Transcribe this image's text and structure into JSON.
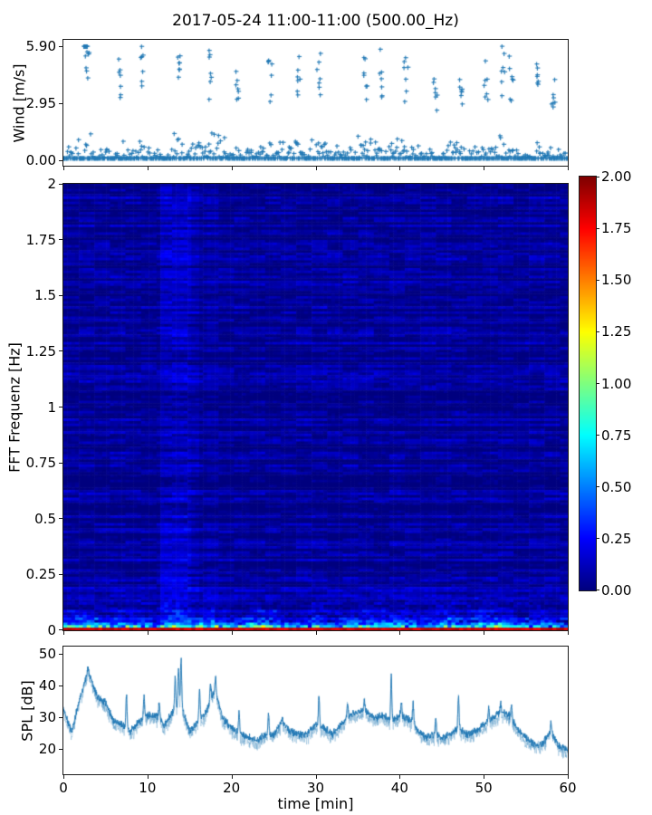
{
  "figure": {
    "title": "2017-05-24 11:00-11:00 (500.00_Hz)",
    "background_color": "#ffffff",
    "series_color": "#1f77b4"
  },
  "chart_data": [
    {
      "id": "wind_speed",
      "type": "scatter",
      "ylabel": "Wind [m/s]",
      "xlim": [
        0,
        60
      ],
      "ylim": [
        -0.3,
        6.2
      ],
      "grid": false,
      "marker": "plus",
      "color": "#1f77b4",
      "yticks": {
        "labels": [
          "0.00",
          "2.95",
          "5.90"
        ],
        "values": [
          0,
          2.95,
          5.9
        ]
      },
      "xticks": {
        "labels": [],
        "values": [
          0,
          10,
          20,
          30,
          40,
          50,
          60
        ]
      },
      "sampling": {
        "points_per_minute": 14,
        "relative_spread": 0.75
      },
      "mean_by_minute": [
        1.5,
        1.2,
        2.2,
        3.0,
        2.0,
        1.5,
        1.1,
        1.8,
        1.2,
        1.9,
        1.8,
        1.3,
        1.0,
        1.6,
        1.9,
        1.2,
        1.8,
        2.2,
        2.1,
        1.4,
        1.1,
        1.5,
        1.0,
        0.9,
        1.6,
        1.4,
        1.6,
        1.2,
        1.5,
        1.1,
        1.9,
        1.6,
        0.9,
        0.8,
        1.4,
        2.0,
        2.2,
        1.6,
        1.9,
        1.4,
        1.6,
        1.7,
        1.3,
        0.8,
        1.2,
        1.1,
        1.4,
        1.6,
        1.0,
        1.3,
        1.9,
        1.8,
        2.2,
        1.9,
        1.4,
        0.9,
        1.3,
        1.2,
        1.5,
        1.3,
        1.1
      ],
      "gusts": [
        [
          2.9,
          5.9
        ],
        [
          3.1,
          5.4
        ],
        [
          7.0,
          4.4
        ],
        [
          9.5,
          4.6
        ],
        [
          13.9,
          4.3
        ],
        [
          17.6,
          4.5
        ],
        [
          21.0,
          3.7
        ],
        [
          24.8,
          4.4
        ],
        [
          28.2,
          4.2
        ],
        [
          30.6,
          4.7
        ],
        [
          36.2,
          4.4
        ],
        [
          38.0,
          4.5
        ],
        [
          41.0,
          4.2
        ],
        [
          44.5,
          3.5
        ],
        [
          47.6,
          3.6
        ],
        [
          50.5,
          4.2
        ],
        [
          52.5,
          4.8
        ],
        [
          53.5,
          4.2
        ],
        [
          56.5,
          4.0
        ],
        [
          58.5,
          3.4
        ]
      ]
    },
    {
      "id": "fft_spectrogram",
      "type": "heatmap",
      "ylabel": "FFT Frequenz [Hz]",
      "xlim": [
        0,
        60
      ],
      "ylim": [
        0,
        2
      ],
      "value_range": [
        0,
        2
      ],
      "colormap": "jet",
      "yticks": {
        "labels": [
          "2",
          "1.75",
          "1.5",
          "1.25",
          "1",
          "0.75",
          "0.5",
          "0.25",
          "0"
        ],
        "values": [
          2,
          1.75,
          1.5,
          1.25,
          1,
          0.75,
          0.5,
          0.25,
          0
        ]
      },
      "xticks": {
        "labels": [],
        "values": [
          0,
          10,
          20,
          30,
          40,
          50,
          60
        ]
      },
      "colorbar": {
        "ticks": {
          "labels": [
            "2.00",
            "1.75",
            "1.50",
            "1.25",
            "1.00",
            "0.75",
            "0.50",
            "0.25",
            "0.00"
          ],
          "values": [
            2,
            1.75,
            1.5,
            1.25,
            1,
            0.75,
            0.5,
            0.25,
            0
          ]
        },
        "range": [
          0,
          2
        ]
      },
      "model": {
        "background": {
          "base": 0.04,
          "row_weight": 0.18,
          "block_weight": 0.16,
          "cell_weight": 0.07
        },
        "bright_row_threshold": 0.96,
        "bright_row_boost": 0.1,
        "low_freq_boost": [
          {
            "amplitude": 0.5,
            "decay_hz": 0.1
          },
          {
            "amplitude": 1.1,
            "decay_hz": 0.035
          },
          {
            "amplitude": 1.2,
            "decay_hz": 0.02
          }
        ],
        "bottom_row_value": [
          1.85,
          2.0
        ],
        "bright_band": {
          "t_start": 11.7,
          "t_end": 15.2,
          "stripe_threshold": 0.58,
          "min_boost": 0.1,
          "max_boost": 0.7,
          "dip_center_hz": 0.95,
          "dip_width_hz": 0.3,
          "dip_depth": 0.45
        },
        "echo_columns": [
          {
            "t_start": 15.2,
            "t_end": 16.1,
            "boost": 0.13
          },
          {
            "t_start": 16.9,
            "t_end": 18.4,
            "boost": 0.08
          }
        ],
        "activity_by_minute": [
          1.0,
          1.1,
          1.2,
          1.2,
          1.1,
          1.0,
          0.9,
          1.1,
          0.9,
          1.0,
          0.9,
          0.8,
          1.0,
          1.3,
          1.3,
          0.9,
          1.0,
          1.2,
          1.2,
          1.0,
          0.9,
          1.0,
          1.2,
          1.3,
          1.2,
          1.1,
          0.9,
          0.8,
          0.9,
          0.9,
          1.1,
          0.9,
          0.8,
          0.9,
          1.1,
          1.2,
          1.1,
          0.9,
          1.1,
          1.1,
          1.2,
          1.1,
          0.9,
          0.7,
          0.9,
          1.2,
          1.2,
          1.0,
          0.9,
          1.1,
          1.2,
          1.2,
          1.1,
          1.0,
          0.8,
          0.7,
          0.8,
          0.9,
          0.8,
          0.7,
          0.7
        ]
      }
    },
    {
      "id": "spl",
      "type": "line",
      "ylabel": "SPL [dB]",
      "xlabel": "time [min]",
      "xlim": [
        0,
        60
      ],
      "ylim": [
        12,
        52.3
      ],
      "color": "#1f77b4",
      "noise_db": 1.4,
      "yticks": {
        "labels": [
          "20",
          "30",
          "40",
          "50"
        ],
        "values": [
          20,
          30,
          40,
          50
        ]
      },
      "xticks": {
        "labels": [
          "0",
          "10",
          "20",
          "30",
          "40",
          "50",
          "60"
        ],
        "values": [
          0,
          10,
          20,
          30,
          40,
          50,
          60
        ]
      },
      "envelope_by_minute": [
        34,
        27,
        38,
        46,
        38,
        36,
        30,
        29,
        27,
        30,
        32,
        32,
        29,
        33,
        35,
        27,
        30,
        33,
        40,
        31,
        28,
        26,
        25,
        24,
        26,
        26,
        30,
        27,
        26,
        26,
        29,
        28,
        26,
        29,
        32,
        33,
        33,
        31,
        32,
        30,
        32,
        31,
        28,
        25,
        26,
        25,
        26,
        28,
        26,
        27,
        29,
        31,
        33,
        32,
        28,
        25,
        23,
        23,
        27,
        22,
        21
      ],
      "spikes": [
        [
          2.9,
          47
        ],
        [
          7.5,
          38
        ],
        [
          9.6,
          38
        ],
        [
          11.4,
          36
        ],
        [
          13.3,
          44
        ],
        [
          13.7,
          47
        ],
        [
          14.0,
          50
        ],
        [
          16.2,
          40
        ],
        [
          17.5,
          42
        ],
        [
          18.1,
          44
        ],
        [
          20.9,
          33
        ],
        [
          24.4,
          33
        ],
        [
          26.0,
          31
        ],
        [
          30.4,
          38
        ],
        [
          33.8,
          36
        ],
        [
          35.8,
          37
        ],
        [
          39.0,
          45
        ],
        [
          40.2,
          36
        ],
        [
          41.6,
          36
        ],
        [
          44.3,
          31
        ],
        [
          47.0,
          38
        ],
        [
          50.6,
          35
        ],
        [
          52.0,
          36
        ],
        [
          53.3,
          35
        ],
        [
          58.0,
          30
        ]
      ]
    }
  ]
}
